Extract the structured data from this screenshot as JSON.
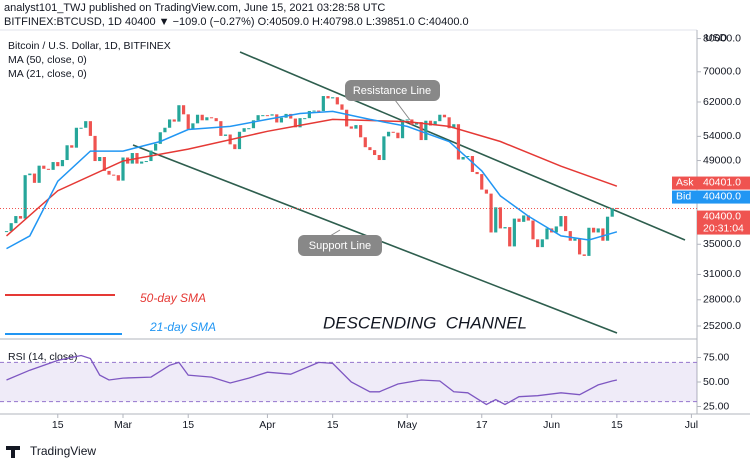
{
  "header": {
    "publisher": "analyst101_TWJ published on TradingView.com, June 15, 2021 03:28:58 UTC",
    "symbol_line": "BITFINEX:BTCUSD, 1D 40400 ▼ −109.0 (−0.27%) O:40509.0 H:40798.0 L:39851.0 C:40400.0",
    "footer": "TradingView"
  },
  "chart_data": [
    {
      "type": "candlestick",
      "log_scale": true,
      "unit_label": "USD",
      "up_color": "#26a69a",
      "down_color": "#ef5350",
      "xlim": [
        -1.4,
        148.2
      ],
      "xticks": [
        {
          "value": 11,
          "label": "15"
        },
        {
          "value": 25,
          "label": "Mar"
        },
        {
          "value": 39,
          "label": "15"
        },
        {
          "value": 56,
          "label": "Apr"
        },
        {
          "value": 70,
          "label": "15"
        },
        {
          "value": 86,
          "label": "May"
        },
        {
          "value": 102,
          "label": "17"
        },
        {
          "value": 117,
          "label": "Jun"
        },
        {
          "value": 131,
          "label": "15"
        },
        {
          "value": 147,
          "label": "Jul"
        }
      ],
      "ylim": [
        22700,
        82800
      ],
      "yticks": [
        {
          "value": 80000,
          "label": "80000.0"
        },
        {
          "value": 70000,
          "label": "70000.0"
        },
        {
          "value": 62000,
          "label": "62000.0"
        },
        {
          "value": 54000,
          "label": "54000.0"
        },
        {
          "value": 49000,
          "label": "49000.0"
        },
        {
          "value": 35000,
          "label": "35000.0"
        },
        {
          "value": 31000,
          "label": "31000.0"
        },
        {
          "value": 28000,
          "label": "28000.0"
        },
        {
          "value": 25200,
          "label": "25200.0"
        }
      ],
      "last_price": {
        "value": 40400,
        "label": "40400.0",
        "countdown": "20:31:04"
      },
      "ask": {
        "name": "Ask",
        "value": 40401,
        "label": "40401.0"
      },
      "bid": {
        "name": "Bid",
        "value": 40400,
        "label": "40400.0"
      },
      "series": [
        {
          "name": "Bitcoin / U.S. Dollar, 1D, BITFINEX",
          "values": [
            36900,
            38100,
            39200,
            38800,
            46200,
            46500,
            44800,
            48000,
            47400,
            47200,
            48700,
            47900,
            49100,
            52100,
            51600,
            55900,
            55900,
            57400,
            54100,
            48900,
            49700,
            47000,
            46300,
            46200,
            45200,
            49600,
            48400,
            50500,
            48400,
            48800,
            48900,
            51000,
            52400,
            54900,
            55900,
            57800,
            57300,
            61200,
            59000,
            55600,
            56900,
            58900,
            57600,
            58300,
            58100,
            57400,
            54100,
            54400,
            52300,
            51300,
            55000,
            55800,
            55800,
            57600,
            58800,
            58800,
            58700,
            59000,
            57100,
            58200,
            59100,
            58000,
            56000,
            58100,
            58100,
            59800,
            59900,
            59800,
            63500,
            62900,
            63200,
            61400,
            60100,
            56200,
            55700,
            56500,
            53800,
            51700,
            51100,
            50100,
            49100,
            54000,
            55000,
            54800,
            53600,
            57700,
            57800,
            56600,
            57200,
            53200,
            57500,
            56400,
            57400,
            58900,
            58300,
            55800,
            56700,
            49200,
            49700,
            49900,
            46800,
            46400,
            43600,
            42900,
            36700,
            40600,
            37300,
            37500,
            34700,
            38800,
            38300,
            39300,
            38500,
            35700,
            34600,
            35700,
            37300,
            36700,
            37600,
            39200,
            36900,
            35500,
            35800,
            33600,
            33400,
            37400,
            36700,
            37300,
            35500,
            39100,
            40500,
            40400
          ]
        },
        {
          "name": "MA (50, close, 0)",
          "color": "#e53935",
          "x": [
            0,
            11,
            25,
            39,
            56,
            70,
            86,
            95,
            106,
            119,
            131
          ],
          "values": [
            36200,
            43400,
            48900,
            51300,
            55100,
            57800,
            57300,
            56200,
            52900,
            47900,
            44200
          ]
        },
        {
          "name": "MA (21, close, 0)",
          "color": "#2196f3",
          "x": [
            0,
            5,
            11,
            18,
            25,
            33,
            39,
            48,
            56,
            63,
            70,
            78,
            86,
            95,
            102,
            106,
            112,
            119,
            125,
            131
          ],
          "values": [
            34400,
            36200,
            45100,
            50900,
            50900,
            52900,
            55500,
            56200,
            57800,
            59200,
            59700,
            57800,
            56200,
            52900,
            47000,
            42500,
            39200,
            36200,
            35600,
            36800
          ]
        }
      ],
      "annotations": {
        "resistance": "Resistance Line",
        "support": "Support Line",
        "channel": "DESCENDING  CHANNEL",
        "sma50": "50-day SMA",
        "sma21": "21-day SMA"
      }
    },
    {
      "type": "line",
      "title": "RSI (14, close)",
      "color": "#7e57c2",
      "band": [
        30,
        70
      ],
      "ylim": [
        19.4,
        90.8
      ],
      "yticks": [
        {
          "value": 75,
          "label": "75.00"
        },
        {
          "value": 50,
          "label": "50.00"
        },
        {
          "value": 25,
          "label": "25.00"
        }
      ],
      "x": [
        0,
        5,
        11,
        16,
        18,
        20,
        22,
        25,
        31,
        35,
        37,
        39,
        44,
        48,
        52,
        56,
        61,
        67,
        70,
        74,
        78,
        80,
        84,
        89,
        93,
        96,
        99,
        103,
        105,
        107,
        110,
        114,
        119,
        123,
        127,
        130,
        131
      ],
      "values": [
        52,
        62,
        72,
        77,
        74,
        57,
        52,
        54,
        55,
        67,
        70,
        57,
        55,
        49,
        54,
        60,
        58,
        70,
        69,
        50,
        40,
        40,
        48,
        52,
        51,
        40,
        39,
        27,
        32,
        27,
        35,
        36,
        39,
        37,
        47,
        51,
        52
      ]
    }
  ]
}
